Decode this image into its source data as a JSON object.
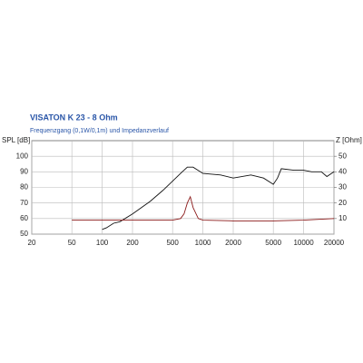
{
  "chart_data": {
    "type": "line",
    "title": "VISATON K 23 - 8 Ohm",
    "subtitle": "Frequenzgang (0,1W/0,1m) und Impedanzverlauf",
    "y_label": "SPL [dB]",
    "y2_label": "Z [Ohm]",
    "x_scale": "log",
    "grid": true,
    "xlim": [
      20,
      20000
    ],
    "xticks": [
      20,
      50,
      100,
      200,
      500,
      1000,
      2000,
      5000,
      10000,
      20000
    ],
    "ylim": [
      50,
      110
    ],
    "yticks": [
      50,
      60,
      70,
      80,
      90,
      100
    ],
    "y2lim": [
      0,
      60
    ],
    "y2ticks": [
      10,
      20,
      30,
      40,
      50
    ],
    "series": [
      {
        "name": "SPL",
        "color": "#111111",
        "x": [
          100,
          110,
          130,
          150,
          200,
          300,
          400,
          500,
          600,
          700,
          800,
          1000,
          1500,
          2000,
          3000,
          4000,
          5000,
          5500,
          6000,
          8000,
          10000,
          12000,
          15000,
          17000,
          20000
        ],
        "values": [
          53,
          54,
          57,
          58,
          63,
          71,
          78,
          84,
          89,
          93,
          93,
          89,
          88,
          86,
          88,
          86,
          82,
          86,
          92,
          91,
          91,
          90,
          90,
          87,
          90
        ]
      },
      {
        "name": "Z",
        "color": "#8b1a1a",
        "axis": "y2",
        "x": [
          50,
          100,
          300,
          500,
          600,
          650,
          700,
          750,
          800,
          900,
          1000,
          2000,
          5000,
          10000,
          20000
        ],
        "values": [
          9,
          9,
          9,
          9,
          10,
          13,
          20,
          24,
          17,
          10,
          9,
          8.5,
          8.5,
          9,
          10
        ]
      }
    ]
  }
}
